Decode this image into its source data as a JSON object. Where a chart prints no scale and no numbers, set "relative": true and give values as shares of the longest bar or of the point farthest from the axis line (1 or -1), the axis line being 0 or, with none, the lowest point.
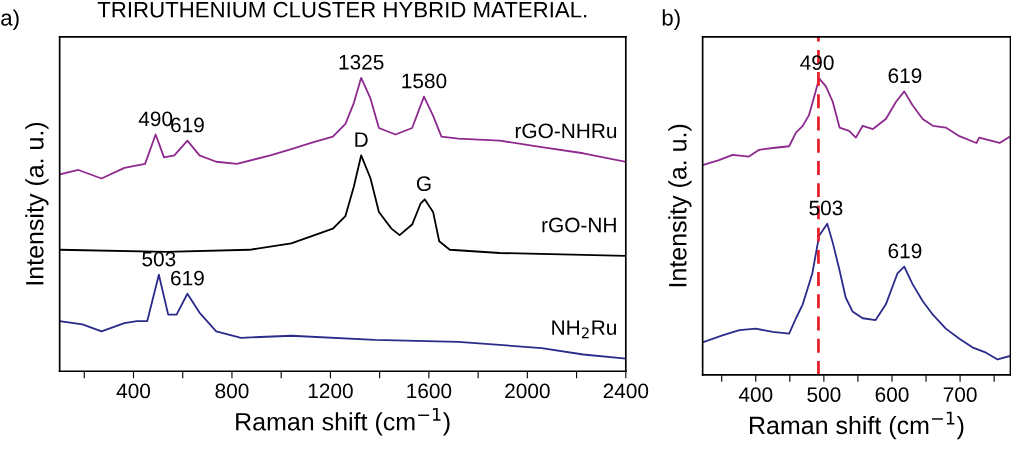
{
  "chart_data": [
    {
      "type": "line",
      "title": "TRIRUTHENIUM CLUSTER HYBRID MATERIAL.",
      "xlabel": "Raman shift (cm$^{−1}$)",
      "ylabel": "Intensity (a. u.)",
      "relative": true,
      "legend": false,
      "grid": false,
      "xlim": [
        100,
        2400
      ],
      "xticks": [
        {
          "value": 200,
          "label": null
        },
        400,
        {
          "value": 600,
          "label": null
        },
        800,
        {
          "value": 1000,
          "label": null
        },
        1200,
        {
          "value": 1400,
          "label": null
        },
        1600,
        {
          "value": 1800,
          "label": null
        },
        2000,
        {
          "value": 2200,
          "label": null
        },
        2400
      ],
      "series": [
        {
          "name": "rGO-NHRu",
          "color": "#8e2a8e",
          "x": [
            100,
            176,
            270,
            363,
            447,
            490,
            524,
            566,
            619,
            668,
            736,
            820,
            956,
            1041,
            1125,
            1210,
            1261,
            1295,
            1325,
            1363,
            1397,
            1464,
            1532,
            1580,
            1617,
            1651,
            1719,
            1888,
            2058,
            2227,
            2400
          ],
          "values": [
            0.671,
            0.686,
            0.657,
            0.693,
            0.707,
            0.807,
            0.729,
            0.736,
            0.786,
            0.736,
            0.714,
            0.707,
            0.736,
            0.757,
            0.779,
            0.8,
            0.843,
            0.914,
            1.0,
            0.929,
            0.829,
            0.807,
            0.829,
            0.936,
            0.871,
            0.8,
            0.793,
            0.786,
            0.764,
            0.743,
            0.714
          ]
        },
        {
          "name": "rGO-NH",
          "color": "#000000",
          "x": [
            100,
            532,
            871,
            1041,
            1210,
            1261,
            1295,
            1325,
            1363,
            1397,
            1448,
            1481,
            1532,
            1566,
            1583,
            1617,
            1642,
            1685,
            1888,
            2400
          ],
          "values": [
            0.414,
            0.407,
            0.414,
            0.436,
            0.486,
            0.529,
            0.629,
            0.736,
            0.657,
            0.543,
            0.486,
            0.464,
            0.5,
            0.571,
            0.586,
            0.543,
            0.443,
            0.414,
            0.403,
            0.393
          ]
        },
        {
          "name": "NH$_{2}$Ru",
          "color": "#2b2b8c",
          "x": [
            100,
            193,
            270,
            363,
            414,
            456,
            503,
            541,
            575,
            619,
            668,
            736,
            837,
            1041,
            1380,
            1719,
            2058,
            2227,
            2400
          ],
          "values": [
            0.171,
            0.16,
            0.136,
            0.164,
            0.171,
            0.171,
            0.329,
            0.193,
            0.193,
            0.264,
            0.2,
            0.136,
            0.114,
            0.121,
            0.107,
            0.1,
            0.079,
            0.057,
            0.043
          ]
        }
      ],
      "annotations": [
        "a)",
        {
          "text": "490",
          "x": 490,
          "y": 0.807
        },
        {
          "text": "619",
          "x": 619,
          "y": 0.786
        },
        {
          "text": "1325",
          "x": 1325,
          "y": 1.0
        },
        {
          "text": "1580",
          "x": 1580,
          "y": 0.936
        },
        {
          "text": "D",
          "x": 1325,
          "y": 0.736
        },
        {
          "text": "G",
          "x": 1580,
          "y": 0.586
        },
        {
          "text": "503",
          "x": 503,
          "y": 0.329
        },
        {
          "text": "619",
          "x": 619,
          "y": 0.264
        }
      ]
    },
    {
      "type": "line",
      "xlabel": "Raman shift (cm$^{−1}$)",
      "ylabel": "Intensity (a. u.)",
      "relative": true,
      "legend": false,
      "grid": false,
      "xlim": [
        322,
        774
      ],
      "xticks": [
        {
          "value": 350,
          "label": null
        },
        400,
        {
          "value": 450,
          "label": null
        },
        500,
        {
          "value": 550,
          "label": null
        },
        600,
        {
          "value": 650,
          "label": null
        },
        700,
        {
          "value": 750,
          "label": null
        }
      ],
      "series": [
        {
          "color": "#8e2a8e",
          "x": [
            322,
            346,
            366,
            390,
            405,
            425,
            449,
            459,
            469,
            478,
            488,
            493,
            503,
            513,
            523,
            537,
            547,
            557,
            572,
            591,
            606,
            618,
            630,
            645,
            660,
            679,
            699,
            724,
            728,
            748,
            758,
            774
          ],
          "values": [
            0.707,
            0.724,
            0.742,
            0.736,
            0.759,
            0.765,
            0.771,
            0.817,
            0.84,
            0.875,
            0.956,
            1.0,
            0.973,
            0.921,
            0.834,
            0.823,
            0.8,
            0.84,
            0.829,
            0.863,
            0.921,
            0.956,
            0.91,
            0.863,
            0.84,
            0.834,
            0.805,
            0.782,
            0.8,
            0.788,
            0.782,
            0.805
          ]
        },
        {
          "color": "#2b2b8c",
          "x": [
            322,
            351,
            376,
            400,
            425,
            449,
            459,
            469,
            483,
            493,
            505,
            513,
            523,
            532,
            542,
            557,
            576,
            591,
            608,
            618,
            630,
            645,
            660,
            679,
            699,
            718,
            738,
            755,
            774
          ],
          "values": [
            0.11,
            0.133,
            0.151,
            0.156,
            0.145,
            0.139,
            0.191,
            0.238,
            0.342,
            0.469,
            0.51,
            0.446,
            0.353,
            0.261,
            0.214,
            0.191,
            0.185,
            0.238,
            0.342,
            0.365,
            0.307,
            0.249,
            0.203,
            0.156,
            0.122,
            0.093,
            0.075,
            0.052,
            0.064
          ]
        }
      ],
      "ref_lines": [
        {
          "axis": "x",
          "value": 492,
          "color": "#e8202a",
          "line_style": "dashed"
        }
      ],
      "annotations": [
        "b)",
        {
          "text": "490",
          "x": 490,
          "y": 1.0
        },
        {
          "text": "619",
          "x": 619,
          "y": 0.956
        },
        {
          "text": "503",
          "x": 503,
          "y": 0.51
        },
        {
          "text": "619",
          "x": 619,
          "y": 0.365
        }
      ]
    }
  ]
}
